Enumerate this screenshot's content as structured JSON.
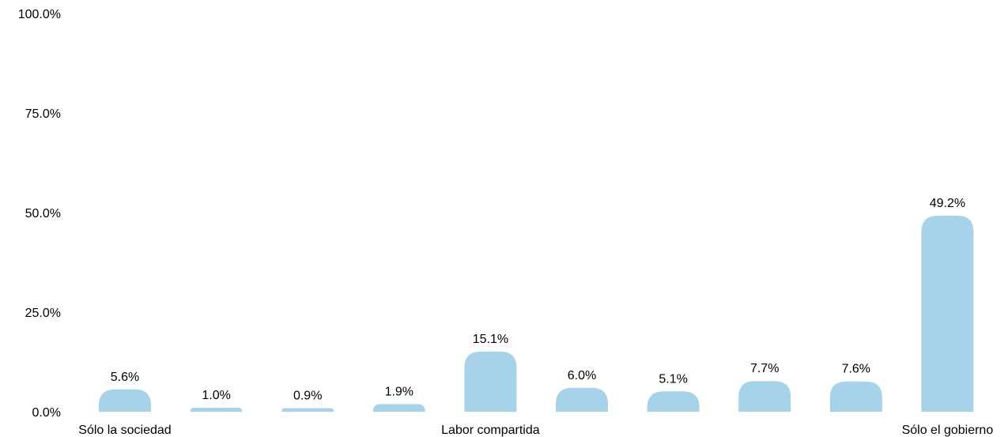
{
  "chart_data": {
    "type": "bar",
    "values": [
      5.6,
      1.0,
      0.9,
      1.9,
      15.1,
      6.0,
      5.1,
      7.7,
      7.6,
      49.2
    ],
    "value_labels": [
      "5.6%",
      "1.0%",
      "0.9%",
      "1.9%",
      "15.1%",
      "6.0%",
      "5.1%",
      "7.7%",
      "7.6%",
      "49.2%"
    ],
    "category_labels": [
      {
        "index": 0,
        "text": "Sólo la sociedad"
      },
      {
        "index": 4,
        "text": "Labor compartida"
      },
      {
        "index": 9,
        "text": "Sólo el gobierno"
      }
    ],
    "ylim": [
      0,
      100
    ],
    "y_ticks": [
      0,
      25,
      50,
      75,
      100
    ],
    "y_tick_labels": [
      "0.0%",
      "25.0%",
      "50.0%",
      "75.0%",
      "100.0%"
    ],
    "grid": false,
    "bar_color": "#a6d3ea",
    "title": "",
    "xlabel": "",
    "ylabel": ""
  }
}
